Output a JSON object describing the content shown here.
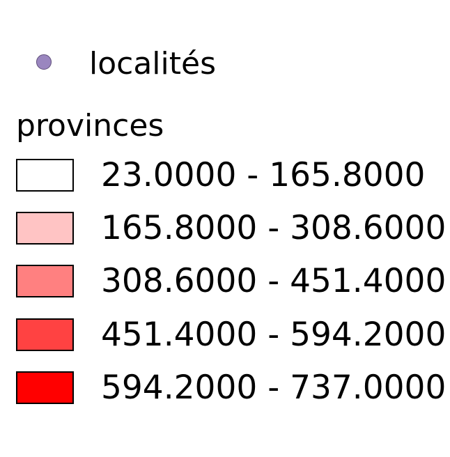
{
  "legend": {
    "point_layer": {
      "label": "localités",
      "symbol_color": "#9a86bf",
      "symbol_shape": "circle"
    },
    "polygon_layer": {
      "title": "provinces",
      "classes": [
        {
          "label": "23.0000 - 165.8000",
          "color": "#ffffff"
        },
        {
          "label": "165.8000 - 308.6000",
          "color": "#ffc4c4"
        },
        {
          "label": "308.6000 - 451.4000",
          "color": "#ff8080"
        },
        {
          "label": "451.4000 - 594.2000",
          "color": "#ff4242"
        },
        {
          "label": "594.2000 - 737.0000",
          "color": "#ff0000"
        }
      ]
    }
  }
}
